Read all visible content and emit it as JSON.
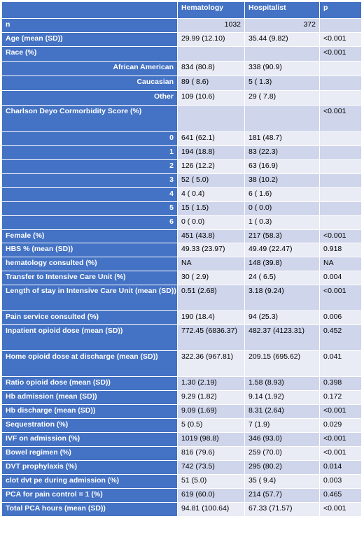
{
  "header": {
    "label": "",
    "col1": "Hematology",
    "col2": "Hospitalist",
    "col3": "p"
  },
  "rows": [
    {
      "label": "n",
      "v1": "1032",
      "v2": "372",
      "p": "",
      "align": "right",
      "h": 20
    },
    {
      "label": "Age (mean (SD))",
      "v1": "29.99 (12.10)",
      "v2": "35.44 (9.82)",
      "p": "<0.001",
      "h": 20
    },
    {
      "label": "Race (%)",
      "v1": "",
      "v2": "",
      "p": "<0.001",
      "h": 21
    },
    {
      "label": "African American",
      "v1": "834 (80.8)",
      "v2": "338 (90.9)",
      "p": "",
      "indent": true,
      "h": 21
    },
    {
      "label": "Caucasian",
      "v1": "89 ( 8.6)",
      "v2": "5 ( 1.3)",
      "p": "",
      "indent": true,
      "h": 21
    },
    {
      "label": "Other",
      "v1": "109 (10.6)",
      "v2": "29 ( 7.8)",
      "p": "",
      "indent": true,
      "h": 21
    },
    {
      "label": "Charlson Deyo Cormorbidity Score (%)",
      "v1": "",
      "v2": "",
      "p": "<0.001",
      "h": 38
    },
    {
      "label": "0",
      "v1": "641 (62.1)",
      "v2": "181 (48.7)",
      "p": "",
      "indent": true,
      "h": 20
    },
    {
      "label": "1",
      "v1": "194 (18.8)",
      "v2": "83 (22.3)",
      "p": "",
      "indent": true,
      "h": 20
    },
    {
      "label": "2",
      "v1": "126 (12.2)",
      "v2": "63 (16.9)",
      "p": "",
      "indent": true,
      "h": 20
    },
    {
      "label": "3",
      "v1": "52 ( 5.0)",
      "v2": "38 (10.2)",
      "p": "",
      "indent": true,
      "h": 20
    },
    {
      "label": "4",
      "v1": "4 ( 0.4)",
      "v2": "6 ( 1.6)",
      "p": "",
      "indent": true,
      "h": 20
    },
    {
      "label": "5",
      "v1": "15 ( 1.5)",
      "v2": "0 ( 0.0)",
      "p": "",
      "indent": true,
      "h": 20
    },
    {
      "label": "6",
      "v1": "0 ( 0.0)",
      "v2": "1 ( 0.3)",
      "p": "",
      "indent": true,
      "h": 20
    },
    {
      "label": "Female (%)",
      "v1": "451 (43.8)",
      "v2": "217 (58.3)",
      "p": "<0.001",
      "h": 19
    },
    {
      "label": "HBS % (mean (SD))",
      "v1": "49.33 (23.97)",
      "v2": "49.49 (22.47)",
      "p": "0.918",
      "h": 20
    },
    {
      "label": "hematology consulted (%)",
      "v1": "NA",
      "v2": "148 (39.8)",
      "p": "NA",
      "h": 20
    },
    {
      "label": "Transfer to Intensive Care Unit (%)",
      "v1": "30 ( 2.9)",
      "v2": "24 ( 6.5)",
      "p": "0.004",
      "h": 20
    },
    {
      "label": "Length of stay in Intensive Care Unit (mean (SD))",
      "v1": "0.51 (2.68)",
      "v2": "3.18 (9.24)",
      "p": "<0.001",
      "h": 37
    },
    {
      "label": "Pain service consulted (%)",
      "v1": "190 (18.4)",
      "v2": "94 (25.3)",
      "p": "0.006",
      "h": 20
    },
    {
      "label": "Inpatient opioid dose (mean (SD))",
      "v1": "772.45 (6836.37)",
      "v2": "482.37 (4123.31)",
      "p": "0.452",
      "h": 37
    },
    {
      "label": "Home opioid dose at discharge (mean (SD))",
      "v1": "322.36 (967.81)",
      "v2": "209.15 (695.62)",
      "p": "0.041",
      "h": 37
    },
    {
      "label": "Ratio opioid dose (mean (SD))",
      "v1": "1.30 (2.19)",
      "v2": "1.58 (8.93)",
      "p": "0.398",
      "h": 20
    },
    {
      "label": "Hb admission (mean (SD))",
      "v1": "9.29 (1.82)",
      "v2": "9.14 (1.92)",
      "p": "0.172",
      "h": 20
    },
    {
      "label": "Hb discharge (mean (SD))",
      "v1": "9.09 (1.69)",
      "v2": "8.31 (2.64)",
      "p": "<0.001",
      "h": 20
    },
    {
      "label": "Sequestration (%)",
      "v1": "5 (0.5)",
      "v2": "7 (1.9)",
      "p": "0.029",
      "h": 20
    },
    {
      "label": "IVF on admission (%)",
      "v1": "1019 (98.8)",
      "v2": "346 (93.0)",
      "p": "<0.001",
      "h": 20
    },
    {
      "label": "Bowel regimen (%)",
      "v1": "816 (79.6)",
      "v2": "259 (70.0)",
      "p": "<0.001",
      "h": 20
    },
    {
      "label": "DVT prophylaxis (%)",
      "v1": "742 (73.5)",
      "v2": "295 (80.2)",
      "p": "0.014",
      "h": 20
    },
    {
      "label": "clot dvt pe during admission (%)",
      "v1": "51 (5.0)",
      "v2": "35 ( 9.4)",
      "p": "0.003",
      "h": 20
    },
    {
      "label": "PCA for pain control = 1 (%)",
      "v1": "619 (60.0)",
      "v2": "214 (57.7)",
      "p": "0.465",
      "h": 20
    },
    {
      "label": "Total PCA hours (mean (SD))",
      "v1": "94.81 (100.64)",
      "v2": "67.33 (71.57)",
      "p": "<0.001",
      "h": 20
    }
  ]
}
